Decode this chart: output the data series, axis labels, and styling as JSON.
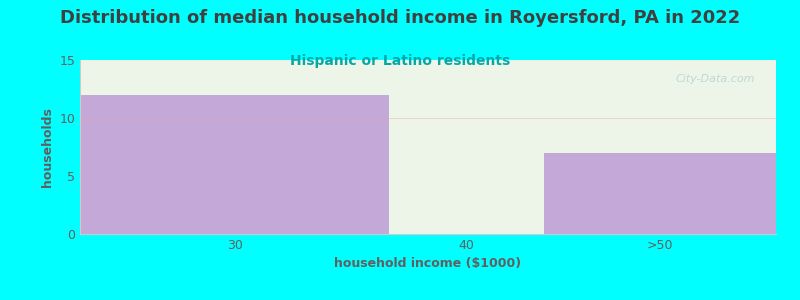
{
  "title": "Distribution of median household income in Royersford, PA in 2022",
  "subtitle": "Hispanic or Latino residents",
  "xlabel": "household income ($1000)",
  "ylabel": "households",
  "bar_labels": [
    "30",
    "40",
    ">50"
  ],
  "bar_values": [
    12,
    0,
    7
  ],
  "bar_colors": [
    "#c4a8d8",
    "#deebd0",
    "#c4a8d8"
  ],
  "ylim": [
    0,
    15
  ],
  "yticks": [
    0,
    5,
    10,
    15
  ],
  "background_color": "#00ffff",
  "plot_bg_top_color": "#edf5e8",
  "title_color": "#404040",
  "subtitle_color": "#00aaaa",
  "axis_label_color": "#606060",
  "tick_color": "#606060",
  "watermark": "City-Data.com",
  "title_fontsize": 13,
  "subtitle_fontsize": 10,
  "label_fontsize": 9,
  "tick_fontsize": 9,
  "gridline_color": "#f0a0a0",
  "watermark_color": "#aacccc"
}
